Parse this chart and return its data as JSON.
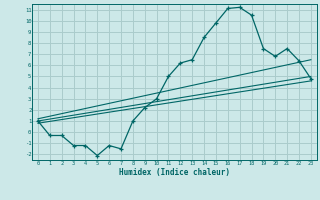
{
  "xlabel": "Humidex (Indice chaleur)",
  "bg_color": "#cce8e8",
  "grid_color": "#aacccc",
  "line_color": "#006666",
  "xlim": [
    -0.5,
    23.5
  ],
  "ylim": [
    -2.5,
    11.5
  ],
  "xticks": [
    0,
    1,
    2,
    3,
    4,
    5,
    6,
    7,
    8,
    9,
    10,
    11,
    12,
    13,
    14,
    15,
    16,
    17,
    18,
    19,
    20,
    21,
    22,
    23
  ],
  "yticks": [
    -2,
    -1,
    0,
    1,
    2,
    3,
    4,
    5,
    6,
    7,
    8,
    9,
    10,
    11
  ],
  "data_line": [
    [
      0,
      1.0
    ],
    [
      1,
      -0.3
    ],
    [
      2,
      -0.3
    ],
    [
      3,
      -1.2
    ],
    [
      4,
      -1.2
    ],
    [
      5,
      -2.1
    ],
    [
      6,
      -1.2
    ],
    [
      7,
      -1.5
    ],
    [
      8,
      1.0
    ],
    [
      9,
      2.2
    ],
    [
      10,
      3.0
    ],
    [
      11,
      5.0
    ],
    [
      12,
      6.2
    ],
    [
      13,
      6.5
    ],
    [
      14,
      8.5
    ],
    [
      15,
      9.8
    ],
    [
      16,
      11.1
    ],
    [
      17,
      11.2
    ],
    [
      18,
      10.5
    ],
    [
      19,
      7.5
    ],
    [
      20,
      6.8
    ],
    [
      21,
      7.5
    ],
    [
      22,
      6.4
    ],
    [
      23,
      4.8
    ]
  ],
  "reg_line1": [
    [
      0,
      0.8
    ],
    [
      23,
      4.6
    ]
  ],
  "reg_line2": [
    [
      0,
      1.0
    ],
    [
      23,
      5.0
    ]
  ],
  "reg_line3": [
    [
      0,
      1.2
    ],
    [
      23,
      6.5
    ]
  ]
}
